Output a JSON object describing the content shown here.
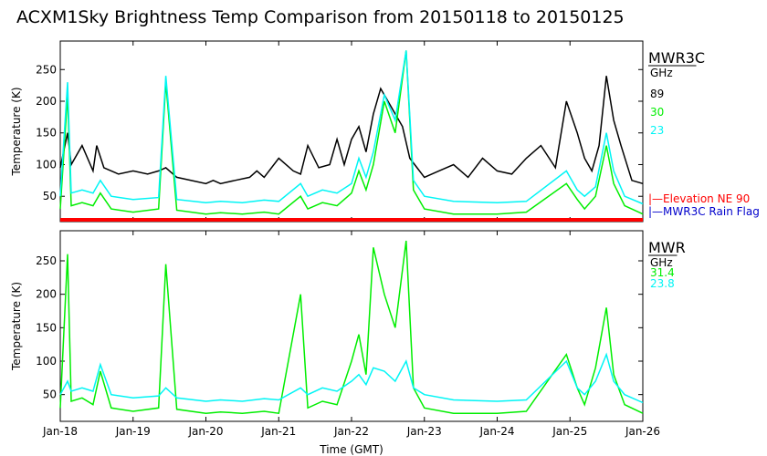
{
  "title": "ACXM1Sky Brightness Temp Comparison from 20150118 to 20150125",
  "xlabel": "Time (GMT)",
  "colors": {
    "c89": "#000000",
    "c30": "#00ee00",
    "c23": "#00f5f5",
    "elevation": "#ff0000",
    "rainflag": "#0000cc"
  },
  "chart_data": [
    {
      "type": "line",
      "instrument": "MWR3C",
      "unit_label": "GHz",
      "ylabel": "Temperature (K)",
      "ylim": [
        10,
        295
      ],
      "yticks": [
        50,
        100,
        150,
        200,
        250
      ],
      "xlim": [
        "2015-01-18",
        "2015-01-26"
      ],
      "xticks": [
        "Jan-18",
        "Jan-19",
        "Jan-20",
        "Jan-21",
        "Jan-22",
        "Jan-23",
        "Jan-24",
        "Jan-25",
        "Jan-26"
      ],
      "flags": [
        {
          "name": "Elevation NE 90",
          "label": "|—Elevation NE 90",
          "color": "#ff0000"
        },
        {
          "name": "MWR3C Rain Flag",
          "label": "|—MWR3C Rain Flag",
          "color": "#0000cc"
        }
      ],
      "series": [
        {
          "name": "89",
          "color": "#000000",
          "x_days": [
            0,
            0.1,
            0.15,
            0.3,
            0.45,
            0.5,
            0.6,
            0.8,
            1.0,
            1.2,
            1.35,
            1.45,
            1.6,
            2.0,
            2.1,
            2.2,
            2.4,
            2.6,
            2.7,
            2.8,
            3.0,
            3.2,
            3.3,
            3.4,
            3.55,
            3.7,
            3.8,
            3.9,
            4.0,
            4.1,
            4.2,
            4.3,
            4.4,
            4.5,
            4.6,
            4.7,
            4.8,
            5.0,
            5.2,
            5.4,
            5.6,
            5.8,
            6.0,
            6.2,
            6.4,
            6.6,
            6.8,
            6.95,
            7.1,
            7.2,
            7.3,
            7.4,
            7.5,
            7.6,
            7.7,
            7.85,
            8.0
          ],
          "y": [
            95,
            150,
            100,
            130,
            90,
            130,
            95,
            85,
            90,
            85,
            90,
            95,
            80,
            70,
            75,
            70,
            75,
            80,
            90,
            80,
            110,
            90,
            85,
            130,
            95,
            100,
            140,
            100,
            140,
            160,
            120,
            180,
            220,
            200,
            180,
            160,
            110,
            80,
            90,
            100,
            80,
            110,
            90,
            85,
            110,
            130,
            95,
            200,
            150,
            110,
            90,
            130,
            240,
            170,
            130,
            75,
            70
          ]
        },
        {
          "name": "30",
          "color": "#00ee00",
          "x_days": [
            0,
            0.1,
            0.15,
            0.3,
            0.45,
            0.55,
            0.7,
            1.0,
            1.35,
            1.45,
            1.6,
            2.0,
            2.2,
            2.5,
            2.8,
            3.0,
            3.3,
            3.4,
            3.6,
            3.8,
            4.0,
            4.1,
            4.2,
            4.3,
            4.45,
            4.6,
            4.75,
            4.85,
            5.0,
            5.4,
            6.0,
            6.4,
            6.95,
            7.1,
            7.2,
            7.35,
            7.5,
            7.6,
            7.75,
            8.0
          ],
          "y": [
            30,
            210,
            35,
            40,
            35,
            55,
            30,
            25,
            30,
            230,
            28,
            22,
            24,
            22,
            25,
            22,
            50,
            30,
            40,
            35,
            55,
            90,
            60,
            100,
            200,
            150,
            280,
            60,
            30,
            22,
            22,
            25,
            70,
            45,
            30,
            50,
            130,
            70,
            35,
            22
          ]
        },
        {
          "name": "23",
          "color": "#00f5f5",
          "x_days": [
            0,
            0.1,
            0.15,
            0.3,
            0.45,
            0.55,
            0.7,
            1.0,
            1.35,
            1.45,
            1.6,
            2.0,
            2.2,
            2.5,
            2.8,
            3.0,
            3.3,
            3.4,
            3.6,
            3.8,
            4.0,
            4.1,
            4.2,
            4.3,
            4.45,
            4.6,
            4.75,
            4.85,
            5.0,
            5.4,
            6.0,
            6.4,
            6.95,
            7.1,
            7.2,
            7.35,
            7.5,
            7.6,
            7.75,
            8.0
          ],
          "y": [
            50,
            230,
            55,
            60,
            55,
            75,
            50,
            45,
            48,
            240,
            45,
            40,
            42,
            40,
            44,
            42,
            70,
            50,
            60,
            55,
            70,
            110,
            80,
            120,
            210,
            170,
            280,
            75,
            50,
            42,
            40,
            42,
            90,
            60,
            50,
            65,
            150,
            90,
            50,
            38
          ]
        }
      ]
    },
    {
      "type": "line",
      "instrument": "MWR",
      "unit_label": "GHz",
      "ylabel": "Temperature (K)",
      "ylim": [
        10,
        295
      ],
      "yticks": [
        50,
        100,
        150,
        200,
        250
      ],
      "xlim": [
        "2015-01-18",
        "2015-01-26"
      ],
      "xticks": [
        "Jan-18",
        "Jan-19",
        "Jan-20",
        "Jan-21",
        "Jan-22",
        "Jan-23",
        "Jan-24",
        "Jan-25",
        "Jan-26"
      ],
      "series": [
        {
          "name": "31.4",
          "color": "#00ee00",
          "x_days": [
            0,
            0.1,
            0.15,
            0.3,
            0.45,
            0.55,
            0.7,
            1.0,
            1.35,
            1.45,
            1.6,
            2.0,
            2.2,
            2.5,
            2.8,
            3.0,
            3.3,
            3.4,
            3.6,
            3.8,
            4.0,
            4.1,
            4.2,
            4.3,
            4.45,
            4.6,
            4.75,
            4.85,
            5.0,
            5.4,
            6.0,
            6.4,
            6.95,
            7.1,
            7.2,
            7.35,
            7.5,
            7.6,
            7.75,
            8.0
          ],
          "y": [
            30,
            260,
            40,
            45,
            35,
            85,
            30,
            25,
            30,
            245,
            28,
            22,
            24,
            22,
            25,
            22,
            200,
            30,
            40,
            35,
            100,
            140,
            80,
            270,
            200,
            150,
            280,
            60,
            30,
            22,
            22,
            25,
            110,
            60,
            35,
            90,
            180,
            80,
            35,
            22
          ]
        },
        {
          "name": "23.8",
          "color": "#00f5f5",
          "x_days": [
            0,
            0.1,
            0.15,
            0.3,
            0.45,
            0.55,
            0.7,
            1.0,
            1.35,
            1.45,
            1.6,
            2.0,
            2.2,
            2.5,
            2.8,
            3.0,
            3.3,
            3.4,
            3.6,
            3.8,
            4.0,
            4.1,
            4.2,
            4.3,
            4.45,
            4.6,
            4.75,
            4.85,
            5.0,
            5.4,
            6.0,
            6.4,
            6.95,
            7.1,
            7.2,
            7.35,
            7.5,
            7.6,
            7.75,
            8.0
          ],
          "y": [
            50,
            70,
            55,
            60,
            55,
            95,
            50,
            45,
            48,
            60,
            45,
            40,
            42,
            40,
            44,
            42,
            60,
            50,
            60,
            55,
            70,
            80,
            65,
            90,
            85,
            70,
            100,
            60,
            50,
            42,
            40,
            42,
            100,
            60,
            50,
            70,
            110,
            70,
            50,
            38
          ]
        }
      ]
    }
  ]
}
